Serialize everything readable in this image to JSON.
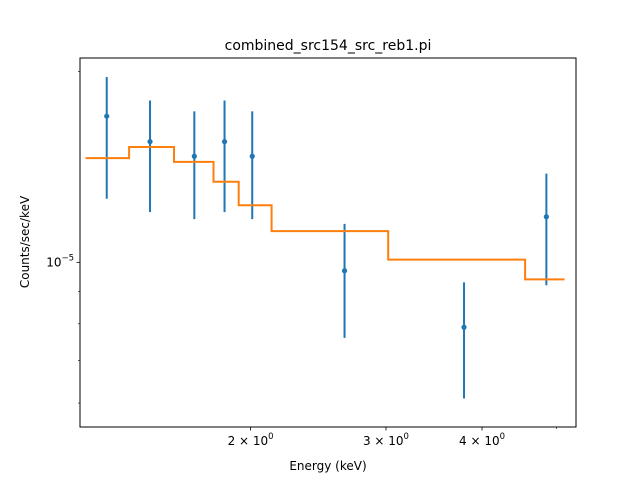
{
  "chart_data": {
    "type": "line",
    "title": "combined_src154_src_reb1.pi",
    "xlabel": "Energy (keV)",
    "ylabel": "Counts/sec/keV",
    "xscale": "log",
    "yscale": "log",
    "xlim": [
      1.2,
      5.3
    ],
    "ylim": [
      5.5e-06,
      2.1e-05
    ],
    "x_ticks": [
      {
        "value": 2,
        "base": "2 × 10",
        "exp": "0"
      },
      {
        "value": 3,
        "base": "3 × 10",
        "exp": "0"
      },
      {
        "value": 4,
        "base": "4 × 10",
        "exp": "0"
      }
    ],
    "y_ticks": [
      {
        "value": 1e-05,
        "base": "10",
        "exp": "−5"
      }
    ],
    "x_minor_ticks": [
      5
    ],
    "y_minor_ticks": [
      6e-06,
      7e-06,
      8e-06,
      9e-06,
      2e-05
    ],
    "grid": false,
    "series": [
      {
        "kind": "errorbar",
        "color": "#1f77b4",
        "points": [
          {
            "x": 1.3,
            "y": 1.7e-05,
            "ylo": 1.26e-05,
            "yhi": 1.96e-05
          },
          {
            "x": 1.48,
            "y": 1.55e-05,
            "ylo": 1.2e-05,
            "yhi": 1.8e-05
          },
          {
            "x": 1.69,
            "y": 1.47e-05,
            "ylo": 1.17e-05,
            "yhi": 1.73e-05
          },
          {
            "x": 1.85,
            "y": 1.55e-05,
            "ylo": 1.2e-05,
            "yhi": 1.8e-05
          },
          {
            "x": 2.01,
            "y": 1.47e-05,
            "ylo": 1.17e-05,
            "yhi": 1.73e-05
          },
          {
            "x": 2.65,
            "y": 9.7e-06,
            "ylo": 7.6e-06,
            "yhi": 1.15e-05
          },
          {
            "x": 3.79,
            "y": 7.9e-06,
            "ylo": 6.1e-06,
            "yhi": 9.3e-06
          },
          {
            "x": 4.85,
            "y": 1.18e-05,
            "ylo": 9.2e-06,
            "yhi": 1.38e-05
          }
        ]
      },
      {
        "kind": "step",
        "color": "#ff7f0e",
        "steps": [
          {
            "x0": 1.22,
            "x1": 1.39,
            "y": 1.46e-05
          },
          {
            "x0": 1.39,
            "x1": 1.59,
            "y": 1.52e-05
          },
          {
            "x0": 1.59,
            "x1": 1.79,
            "y": 1.44e-05
          },
          {
            "x0": 1.79,
            "x1": 1.93,
            "y": 1.34e-05
          },
          {
            "x0": 1.93,
            "x1": 2.13,
            "y": 1.23e-05
          },
          {
            "x0": 2.13,
            "x1": 3.02,
            "y": 1.12e-05
          },
          {
            "x0": 3.02,
            "x1": 4.55,
            "y": 1.01e-05
          },
          {
            "x0": 4.55,
            "x1": 5.12,
            "y": 9.4e-06
          }
        ]
      }
    ]
  }
}
